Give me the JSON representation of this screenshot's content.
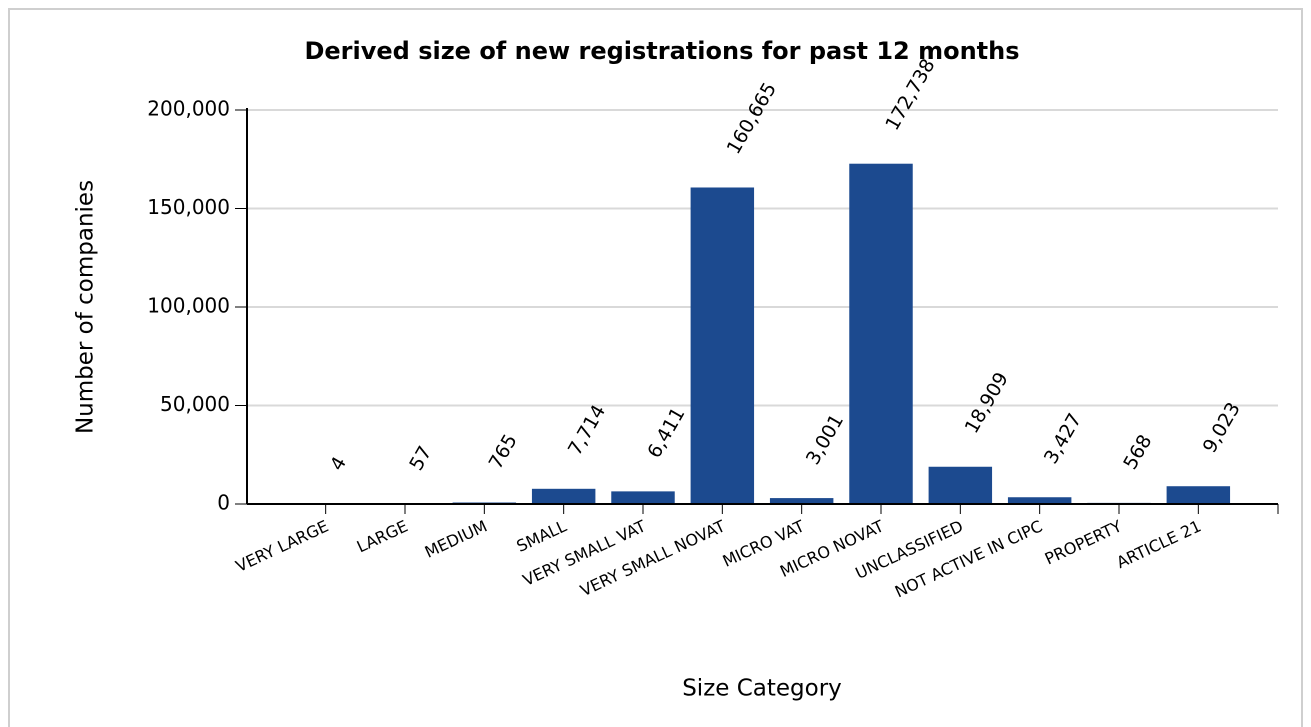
{
  "chart_data": {
    "type": "bar",
    "title": "Derived size of new registrations for past 12 months",
    "x_label": "Size Category",
    "y_label": "Number of companies",
    "categories": [
      "VERY LARGE",
      "LARGE",
      "MEDIUM",
      "SMALL",
      "VERY SMALL VAT",
      "VERY SMALL NOVAT",
      "MICRO VAT",
      "MICRO NOVAT",
      "UNCLASSIFIED",
      "NOT ACTIVE IN CIPC",
      "PROPERTY",
      "ARTICLE 21"
    ],
    "values": [
      4,
      57,
      765,
      7714,
      6411,
      160665,
      3001,
      172738,
      18909,
      3427,
      568,
      9023
    ],
    "value_labels": [
      "4",
      "57",
      "765",
      "7,714",
      "6,411",
      "160,665",
      "3,001",
      "172,738",
      "18,909",
      "3,427",
      "568",
      "9,023"
    ],
    "color": "#1c4a8f",
    "ylim": [
      0,
      200000
    ],
    "yticks": [
      0,
      {
        "value": 50000,
        "label": "50,000"
      },
      {
        "value": 100000,
        "label": "100,000"
      },
      {
        "value": 150000,
        "label": "150,000"
      },
      {
        "value": 200000,
        "label": "200,000"
      }
    ],
    "grid": true
  }
}
